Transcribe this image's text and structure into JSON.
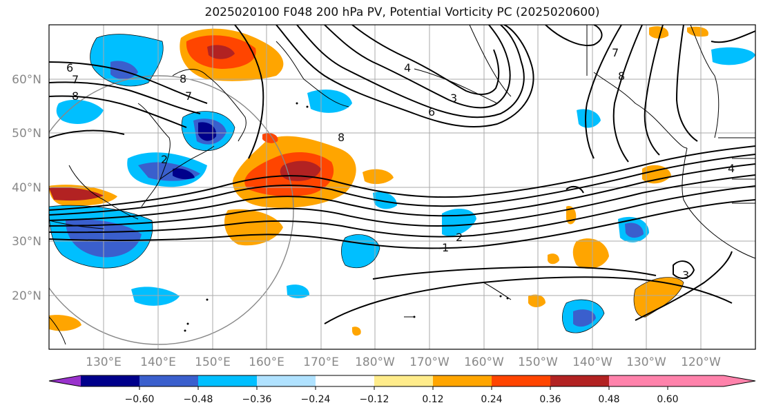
{
  "title": "2025020100 F048 200 hPa PV, Potential Vorticity PC (2025020600)",
  "latitude_labels": [
    "60°N",
    "50°N",
    "40°N",
    "30°N",
    "20°N"
  ],
  "longitude_labels": [
    "130°E",
    "140°E",
    "150°E",
    "160°E",
    "170°E",
    "180°W",
    "170°W",
    "160°W",
    "150°W",
    "140°W",
    "130°W",
    "120°W"
  ],
  "colorbar": {
    "tick_labels": [
      "−0.60",
      "−0.48",
      "−0.36",
      "−0.24",
      "−0.12",
      "0.12",
      "0.24",
      "0.36",
      "0.48",
      "0.60"
    ],
    "colors": [
      "#9932cc",
      "#00008b",
      "#3a5fcd",
      "#00bfff",
      "#b0e2ff",
      "#ffffff",
      "#ffec8b",
      "#ffa500",
      "#ff4500",
      "#b22222",
      "#ff82ab"
    ]
  },
  "contour_labels": [
    "6",
    "7",
    "8",
    "7",
    "8",
    "2",
    "4",
    "6",
    "3",
    "7",
    "8",
    "2",
    "1",
    "4",
    "3",
    "8"
  ]
}
